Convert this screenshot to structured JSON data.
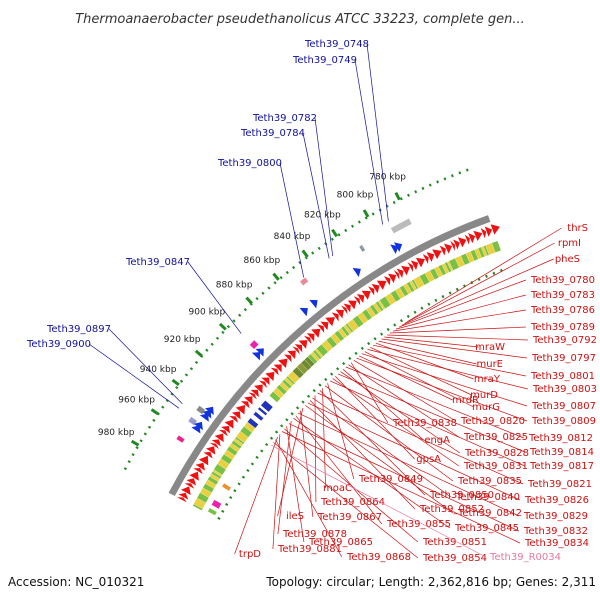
{
  "title": "Thermoanaerobacter pseudethanolicus ATCC 33223, complete gen...",
  "footer": {
    "accession": "Accession: NC_010321",
    "stats": "Topology: circular; Length: 2,362,816 bp; Genes: 2,311"
  },
  "colors": {
    "gene_label": "#cc1111",
    "locus_label": "#111199",
    "rna_label": "#e57aa0",
    "arrow_red": "#ee1111",
    "arrow_blue": "#1133dd",
    "tick_green": "#228822",
    "backbone_gray": "#888888"
  },
  "ticks": [
    {
      "label": "780 kbp",
      "angle": 63.0
    },
    {
      "label": "800 kbp",
      "angle": 59.8
    },
    {
      "label": "820 kbp",
      "angle": 56.5
    },
    {
      "label": "840 kbp",
      "angle": 53.3
    },
    {
      "label": "860 kbp",
      "angle": 50.0
    },
    {
      "label": "880 kbp",
      "angle": 46.8
    },
    {
      "label": "900 kbp",
      "angle": 43.5
    },
    {
      "label": "920 kbp",
      "angle": 40.3
    },
    {
      "label": "940 kbp",
      "angle": 37.0
    },
    {
      "label": "960 kbp",
      "angle": 33.8
    },
    {
      "label": "980 kbp",
      "angle": 30.5
    }
  ],
  "left_labels": [
    {
      "text": "Teth39_0748",
      "angle": 61.2
    },
    {
      "text": "Teth39_0749",
      "angle": 60.6
    },
    {
      "text": "Teth39_0782",
      "angle": 55.2
    },
    {
      "text": "Teth39_0784",
      "angle": 54.8
    },
    {
      "text": "Teth39_0800",
      "angle": 51.9
    },
    {
      "text": "Teth39_0847",
      "angle": 44.2
    },
    {
      "text": "Teth39_0897",
      "angle": 35.8
    },
    {
      "text": "Teth39_0900",
      "angle": 35.3
    }
  ],
  "right_labels": [
    {
      "text": "thrS",
      "color": "#cc1111"
    },
    {
      "text": "rpmI",
      "color": "#cc1111"
    },
    {
      "text": "pheS",
      "color": "#cc1111"
    },
    {
      "text": "Teth39_0780",
      "color": "#cc1111"
    },
    {
      "text": "Teth39_0783",
      "color": "#cc1111"
    },
    {
      "text": "Teth39_0786",
      "color": "#cc1111"
    },
    {
      "text": "Teth39_0789",
      "color": "#cc1111"
    },
    {
      "text": "Teth39_0792",
      "color": "#cc1111"
    },
    {
      "text": "mraW",
      "color": "#cc1111"
    },
    {
      "text": "Teth39_0797",
      "color": "#cc1111"
    },
    {
      "text": "murE",
      "color": "#cc1111"
    },
    {
      "text": "mraY",
      "color": "#cc1111"
    },
    {
      "text": "Teth39_0801",
      "color": "#cc1111"
    },
    {
      "text": "murD",
      "color": "#cc1111"
    },
    {
      "text": "Teth39_0803",
      "color": "#cc1111"
    },
    {
      "text": "murG",
      "color": "#cc1111"
    },
    {
      "text": "Teth39_0807",
      "color": "#cc1111"
    },
    {
      "text": "mrdR",
      "color": "#cc1111"
    },
    {
      "text": "Teth39_0809",
      "color": "#cc1111"
    },
    {
      "text": "Teth39_0820",
      "color": "#cc1111"
    },
    {
      "text": "Teth39_0838",
      "color": "#cc1111"
    },
    {
      "text": "Teth39_0825",
      "color": "#cc1111"
    },
    {
      "text": "Teth39_0812",
      "color": "#cc1111"
    },
    {
      "text": "engA",
      "color": "#cc1111"
    },
    {
      "text": "Teth39_0828",
      "color": "#cc1111"
    },
    {
      "text": "Teth39_0814",
      "color": "#cc1111"
    },
    {
      "text": "gpsA",
      "color": "#cc1111"
    },
    {
      "text": "Teth39_0831",
      "color": "#cc1111"
    },
    {
      "text": "Teth39_0817",
      "color": "#cc1111"
    },
    {
      "text": "Teth39_0849",
      "color": "#cc1111"
    },
    {
      "text": "Teth39_0835",
      "color": "#cc1111"
    },
    {
      "text": "moaC",
      "color": "#cc1111"
    },
    {
      "text": "Teth39_0850",
      "color": "#cc1111"
    },
    {
      "text": "Teth39_0821",
      "color": "#cc1111"
    },
    {
      "text": "Teth39_0864",
      "color": "#cc1111"
    },
    {
      "text": "Teth39_0840",
      "color": "#cc1111"
    },
    {
      "text": "Teth39_0852",
      "color": "#cc1111"
    },
    {
      "text": "Teth39_0826",
      "color": "#cc1111"
    },
    {
      "text": "Teth39_0842",
      "color": "#cc1111"
    },
    {
      "text": "ileS",
      "color": "#cc1111"
    },
    {
      "text": "Teth39_0867",
      "color": "#cc1111"
    },
    {
      "text": "Teth39_0829",
      "color": "#cc1111"
    },
    {
      "text": "Teth39_0855",
      "color": "#cc1111"
    },
    {
      "text": "Teth39_0845",
      "color": "#cc1111"
    },
    {
      "text": "Teth39_0878",
      "color": "#cc1111"
    },
    {
      "text": "Teth39_0832",
      "color": "#cc1111"
    },
    {
      "text": "Teth39_0865",
      "color": "#cc1111"
    },
    {
      "text": "Teth39_0851",
      "color": "#cc1111"
    },
    {
      "text": "Teth39_0834",
      "color": "#cc1111"
    },
    {
      "text": "Teth39_0881",
      "color": "#cc1111"
    },
    {
      "text": "trpD",
      "color": "#cc1111"
    },
    {
      "text": "Teth39_0868",
      "color": "#cc1111"
    },
    {
      "text": "Teth39_0854",
      "color": "#cc1111"
    },
    {
      "text": "Teth39_R0034",
      "color": "#e57aa0"
    }
  ]
}
